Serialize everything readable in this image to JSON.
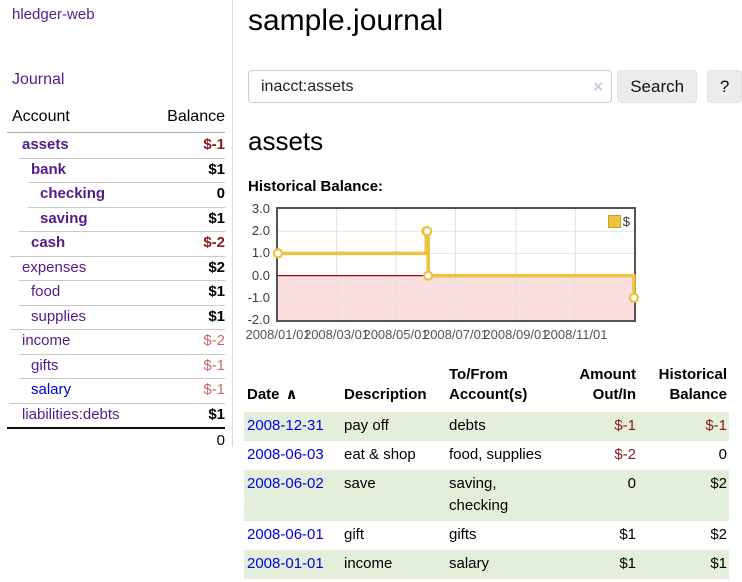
{
  "colors": {
    "link_purple": "#551a8b",
    "link_blue": "#0000e0",
    "negative": "#8b1a1a",
    "negative_light": "#c46a6a",
    "row_green": "#e3eedb",
    "chart_gold": "#edc240",
    "chart_negative_region": "#fbdede",
    "chart_zero_line": "#a40000",
    "chart_border": "#545454"
  },
  "sidebar": {
    "app_title": "hledger-web",
    "nav": {
      "journal_label": "Journal"
    },
    "accounts_table": {
      "headers": {
        "account": "Account",
        "balance": "Balance"
      },
      "rows": [
        {
          "name": "assets",
          "depth": 0,
          "bold": true,
          "balance": "$-1",
          "balance_tone": "negative"
        },
        {
          "name": "bank",
          "depth": 1,
          "bold": true,
          "balance": "$1",
          "balance_tone": "normal"
        },
        {
          "name": "checking",
          "depth": 2,
          "bold": true,
          "balance": "0",
          "balance_tone": "normal"
        },
        {
          "name": "saving",
          "depth": 2,
          "bold": true,
          "balance": "$1",
          "balance_tone": "normal"
        },
        {
          "name": "cash",
          "depth": 1,
          "bold": true,
          "balance": "$-2",
          "balance_tone": "negative"
        },
        {
          "name": "expenses",
          "depth": 0,
          "bold": false,
          "balance": "$2",
          "balance_tone": "normal"
        },
        {
          "name": "food",
          "depth": 1,
          "bold": false,
          "balance": "$1",
          "balance_tone": "normal"
        },
        {
          "name": "supplies",
          "depth": 1,
          "bold": false,
          "balance": "$1",
          "balance_tone": "normal"
        },
        {
          "name": "income",
          "depth": 0,
          "bold": false,
          "balance": "$-2",
          "balance_tone": "negative-light"
        },
        {
          "name": "gifts",
          "depth": 1,
          "bold": false,
          "balance": "$-1",
          "balance_tone": "negative-light"
        },
        {
          "name": "salary",
          "depth": 1,
          "bold": false,
          "link_tone": "blue",
          "balance": "$-1",
          "balance_tone": "negative-light"
        },
        {
          "name": "liabilities:debts",
          "depth": 0,
          "bold": false,
          "balance": "$1",
          "balance_tone": "normal"
        }
      ],
      "total": "0"
    }
  },
  "header": {
    "title": "sample.journal"
  },
  "search": {
    "value": "inacct:assets",
    "clear_icon": "×",
    "button_label": "Search",
    "help_label": "?"
  },
  "account_page": {
    "title": "assets",
    "chart_label": "Historical Balance:"
  },
  "chart_data": {
    "type": "line",
    "step": true,
    "title": "Historical Balance:",
    "series": [
      {
        "name": "$",
        "color": "#edc240",
        "points": [
          [
            "2008-01-01",
            1
          ],
          [
            "2008-06-01",
            2
          ],
          [
            "2008-06-02",
            2
          ],
          [
            "2008-06-03",
            0
          ],
          [
            "2008-12-31",
            -1
          ]
        ]
      }
    ],
    "xrange": [
      "2008-01-01",
      "2008-12-31"
    ],
    "ylim": [
      -2,
      3
    ],
    "ytick_labels": [
      "3.0",
      "2.0",
      "1.0",
      "0.0",
      "-1.0",
      "-2.0"
    ],
    "xtick_labels": [
      "2008/01/01",
      "2008/03/01",
      "2008/05/01",
      "2008/07/01",
      "2008/09/01",
      "2008/11/01"
    ],
    "grid": true,
    "legend_position": "top-right",
    "negative_region": true
  },
  "register_table": {
    "sort_icon": "∧",
    "headers": [
      {
        "label": "Date",
        "align": "left",
        "sortable": true,
        "class": "c-date"
      },
      {
        "label": "Description",
        "align": "left",
        "sortable": false,
        "class": "c-desc"
      },
      {
        "label": "To/From Account(s)",
        "align": "left",
        "sortable": false,
        "class": "c-acct"
      },
      {
        "label": "Amount Out/In",
        "align": "right",
        "sortable": false,
        "class": "c-amt"
      },
      {
        "label": "Historical Balance",
        "align": "right",
        "sortable": false,
        "class": "c-bal"
      }
    ],
    "rows": [
      {
        "date": "2008-12-31",
        "description": "pay off",
        "accounts": "debts",
        "amount": "$-1",
        "balance": "$-1"
      },
      {
        "date": "2008-06-03",
        "description": "eat & shop",
        "accounts": "food, supplies",
        "amount": "$-2",
        "balance": "0"
      },
      {
        "date": "2008-06-02",
        "description": "save",
        "accounts": "saving, checking",
        "amount": "0",
        "balance": "$2"
      },
      {
        "date": "2008-06-01",
        "description": "gift",
        "accounts": "gifts",
        "amount": "$1",
        "balance": "$2"
      },
      {
        "date": "2008-01-01",
        "description": "income",
        "accounts": "salary",
        "amount": "$1",
        "balance": "$1"
      }
    ]
  }
}
